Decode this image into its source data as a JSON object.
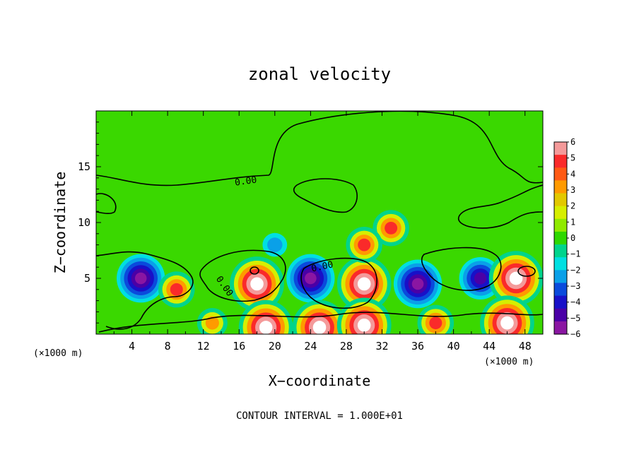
{
  "chart_data": {
    "type": "heatmap",
    "title": "zonal velocity",
    "xlabel": "X−coordinate",
    "ylabel": "Z−coordinate",
    "x_unit": "(×1000 m)",
    "y_unit": "(×1000 m)",
    "xlim": [
      0,
      50
    ],
    "ylim": [
      0,
      20
    ],
    "x_ticks": [
      "4",
      "8",
      "12",
      "16",
      "20",
      "24",
      "28",
      "32",
      "36",
      "40",
      "44",
      "48"
    ],
    "y_ticks": [
      "5",
      "10",
      "15"
    ],
    "colorbar": {
      "min": -6,
      "max": 6,
      "tick_labels": [
        "6",
        "5",
        "4",
        "3",
        "2",
        "1",
        "0",
        "−1",
        "−2",
        "−3",
        "−4",
        "−5",
        "−6"
      ],
      "colors": [
        "#f49a9a",
        "#fa2a2a",
        "#ff5a14",
        "#ff9a00",
        "#e2c800",
        "#d6ee00",
        "#90ea00",
        "#2ed700",
        "#00d48c",
        "#00dfe1",
        "#0aa0e8",
        "#0a4adc",
        "#1810c8",
        "#4a00a6",
        "#8a16a2"
      ]
    },
    "contour_label": "0.00",
    "contour_interval_text": "CONTOUR INTERVAL = 1.000E+01",
    "features": [
      {
        "x": 5,
        "z": 5,
        "sign": "negative",
        "magnitude": 6
      },
      {
        "x": 9,
        "z": 4,
        "sign": "positive",
        "magnitude": 4
      },
      {
        "x": 13,
        "z": 1,
        "sign": "positive",
        "magnitude": 3
      },
      {
        "x": 18,
        "z": 4.5,
        "sign": "positive",
        "magnitude": 7
      },
      {
        "x": 19,
        "z": 0.6,
        "sign": "positive",
        "magnitude": 7
      },
      {
        "x": 24,
        "z": 5,
        "sign": "negative",
        "magnitude": 6
      },
      {
        "x": 25,
        "z": 0.6,
        "sign": "positive",
        "magnitude": 7
      },
      {
        "x": 30,
        "z": 4.5,
        "sign": "positive",
        "magnitude": 7
      },
      {
        "x": 30,
        "z": 0.8,
        "sign": "positive",
        "magnitude": 7
      },
      {
        "x": 36,
        "z": 4.5,
        "sign": "negative",
        "magnitude": 6
      },
      {
        "x": 38,
        "z": 1,
        "sign": "positive",
        "magnitude": 4
      },
      {
        "x": 43,
        "z": 5,
        "sign": "negative",
        "magnitude": 5
      },
      {
        "x": 47,
        "z": 5,
        "sign": "positive",
        "magnitude": 7
      },
      {
        "x": 46,
        "z": 1,
        "sign": "positive",
        "magnitude": 7
      },
      {
        "x": 33,
        "z": 9.5,
        "sign": "positive",
        "magnitude": 4
      },
      {
        "x": 30,
        "z": 8,
        "sign": "positive",
        "magnitude": 4
      },
      {
        "x": 20,
        "z": 8,
        "sign": "negative",
        "magnitude": 2
      }
    ]
  }
}
